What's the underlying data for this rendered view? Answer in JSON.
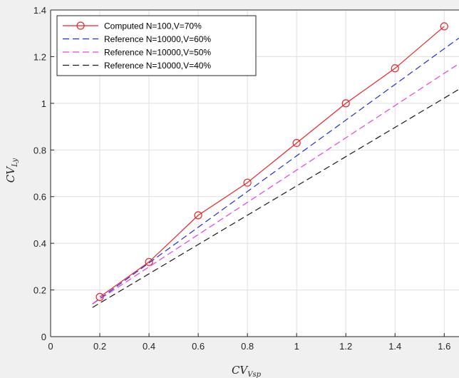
{
  "chart_data": {
    "type": "line",
    "title": "",
    "xlabel": {
      "main": "CV",
      "sub": "Vsp"
    },
    "ylabel": {
      "main": "CV",
      "sub": "Ly"
    },
    "xlim": [
      0,
      1.66
    ],
    "ylim": [
      0,
      1.4
    ],
    "xticks": [
      "0",
      "0.2",
      "0.4",
      "0.6",
      "0.8",
      "1",
      "1.2",
      "1.4",
      "1.6"
    ],
    "yticks": [
      "0",
      "0.2",
      "0.4",
      "0.6",
      "0.8",
      "1",
      "1.2",
      "1.4"
    ],
    "grid": true,
    "legend_position": "top-left",
    "series": [
      {
        "name": "Computed N=100,V=70%",
        "color": "#e8262a",
        "style": "solid",
        "marker": "circle",
        "x": [
          0.2,
          0.4,
          0.6,
          0.8,
          1.0,
          1.2,
          1.4,
          1.6
        ],
        "y": [
          0.17,
          0.32,
          0.52,
          0.66,
          0.83,
          1.0,
          1.15,
          1.33
        ]
      },
      {
        "name": "Reference N=10000,V=60%",
        "color": "#1f2fd6",
        "style": "dashed",
        "marker": "none",
        "x": [
          0.17,
          1.66
        ],
        "y": [
          0.14,
          1.28
        ]
      },
      {
        "name": "Reference N=10000,V=50%",
        "color": "#e63de6",
        "style": "dashed",
        "marker": "none",
        "x": [
          0.17,
          1.66
        ],
        "y": [
          0.14,
          1.17
        ]
      },
      {
        "name": "Reference N=10000,V=40%",
        "color": "#1a1a1a",
        "style": "dashed",
        "marker": "none",
        "x": [
          0.17,
          1.66
        ],
        "y": [
          0.125,
          1.06
        ]
      }
    ]
  }
}
